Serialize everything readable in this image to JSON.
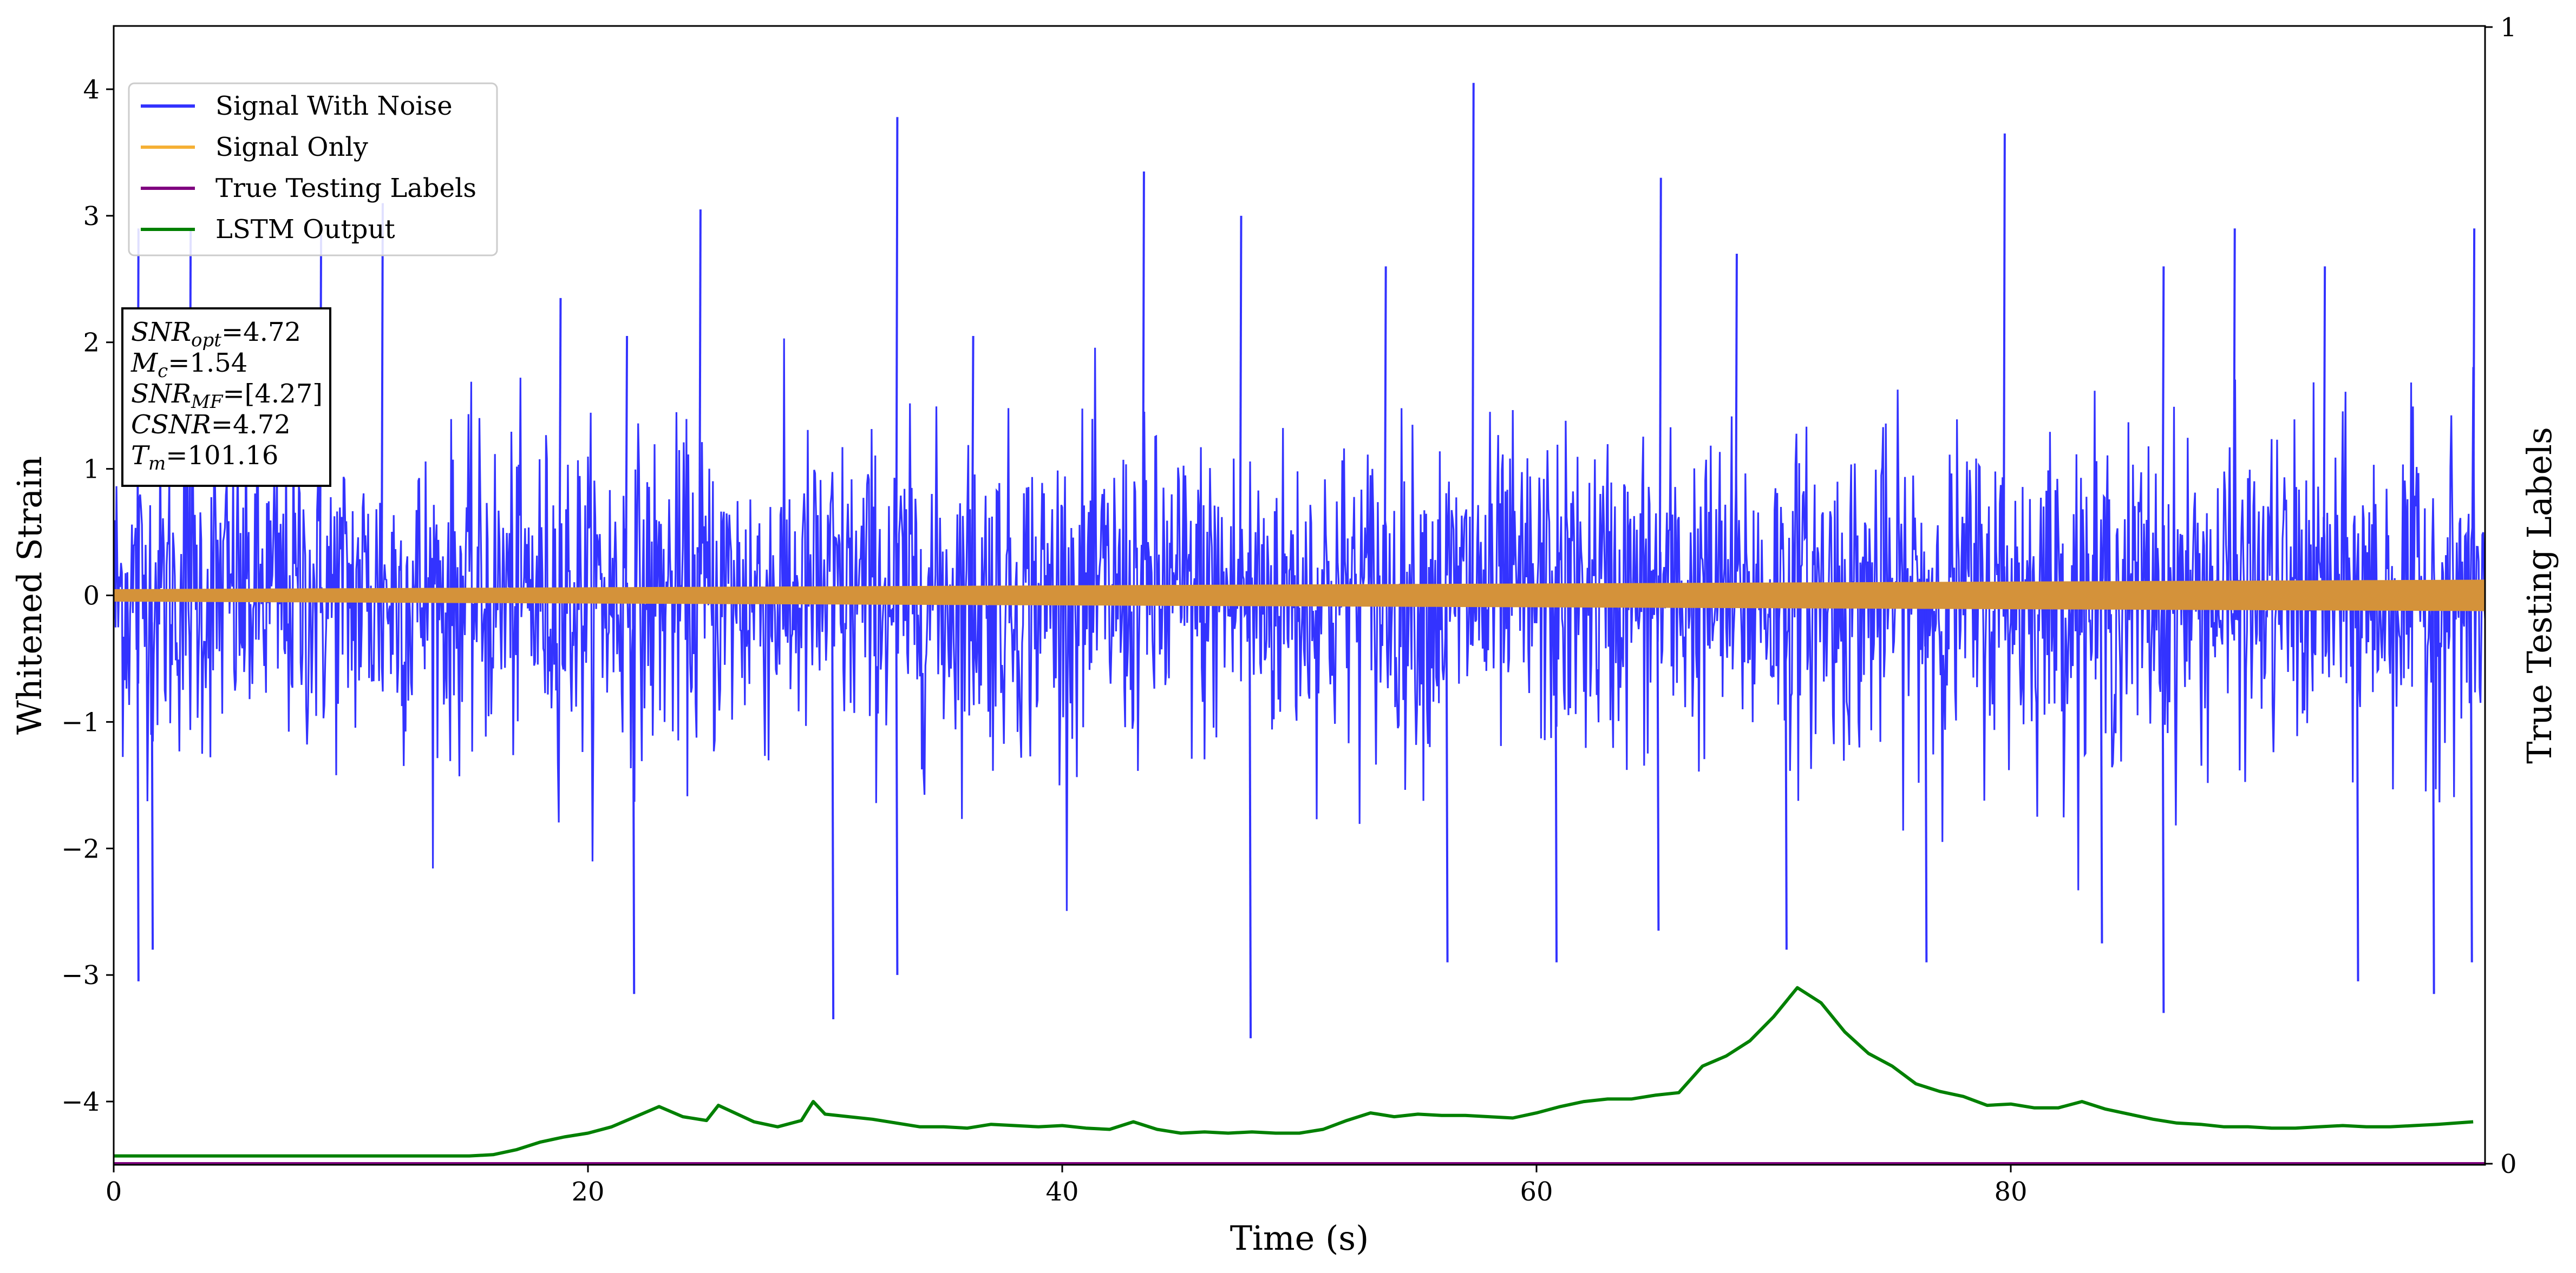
{
  "chart_data": {
    "type": "line",
    "xlabel": "Time (s)",
    "ylabel": "Whitened Strain",
    "y2label": "True Testing Labels",
    "xlim": [
      0,
      100
    ],
    "ylim": [
      -4.5,
      4.5
    ],
    "y2lim": [
      0,
      1
    ],
    "xticks": [
      0,
      20,
      40,
      60,
      80
    ],
    "yticks": [
      -4,
      -3,
      -2,
      -1,
      0,
      1,
      2,
      3,
      4
    ],
    "y2ticks": [
      0,
      1
    ],
    "legend_position": "top-left",
    "series": [
      {
        "name": "Signal With Noise",
        "axis": "left",
        "color": "#3333ff",
        "kind": "noise",
        "note_sigma": 0.62,
        "spikes": [
          [
            1.0,
            2.9
          ],
          [
            3.2,
            2.9
          ],
          [
            8.7,
            2.85
          ],
          [
            11.3,
            3.1
          ],
          [
            18.8,
            2.35
          ],
          [
            21.6,
            2.05
          ],
          [
            24.7,
            3.05
          ],
          [
            33.0,
            3.78
          ],
          [
            36.2,
            2.05
          ],
          [
            43.4,
            3.35
          ],
          [
            47.5,
            3.0
          ],
          [
            53.6,
            2.6
          ],
          [
            57.3,
            4.05
          ],
          [
            65.2,
            3.3
          ],
          [
            68.4,
            2.7
          ],
          [
            79.7,
            3.65
          ],
          [
            86.4,
            2.6
          ],
          [
            89.4,
            2.9
          ],
          [
            93.2,
            2.6
          ],
          [
            99.5,
            2.9
          ],
          [
            1.0,
            -3.05
          ],
          [
            1.6,
            -2.8
          ],
          [
            21.9,
            -3.15
          ],
          [
            30.3,
            -3.35
          ],
          [
            33.0,
            -3.0
          ],
          [
            47.9,
            -3.5
          ],
          [
            56.2,
            -2.9
          ],
          [
            60.8,
            -2.9
          ],
          [
            65.1,
            -2.65
          ],
          [
            70.5,
            -2.8
          ],
          [
            76.4,
            -2.9
          ],
          [
            83.8,
            -2.75
          ],
          [
            86.4,
            -3.3
          ],
          [
            94.6,
            -3.05
          ],
          [
            97.8,
            -3.15
          ],
          [
            99.4,
            -2.9
          ]
        ]
      },
      {
        "name": "Signal Only",
        "axis": "left",
        "color": "#daa03c",
        "kind": "band",
        "amplitude_start": 0.045,
        "amplitude_end": 0.12
      },
      {
        "name": "True Testing Labels",
        "axis": "right",
        "color": "#800080",
        "kind": "line",
        "x": [
          0,
          100
        ],
        "y": [
          0,
          0
        ]
      },
      {
        "name": "LSTM Output",
        "axis": "left",
        "color": "#008000",
        "kind": "line",
        "x": [
          0,
          15,
          16,
          17,
          18,
          19,
          20,
          21,
          22,
          23,
          24,
          25,
          25.5,
          27,
          28,
          29,
          29.5,
          30,
          31,
          32,
          33,
          34,
          35,
          36,
          37,
          38,
          39,
          40,
          41,
          42,
          43,
          44,
          45,
          46,
          47,
          48,
          49,
          50,
          51,
          52,
          53,
          54,
          55,
          56,
          57,
          58,
          59,
          60,
          61,
          62,
          63,
          64,
          65,
          66,
          67,
          68,
          69,
          70,
          71,
          72,
          73,
          74,
          75,
          76,
          77,
          78,
          79,
          80,
          81,
          82,
          83,
          84,
          85,
          86,
          87,
          88,
          89,
          90,
          91,
          92,
          93,
          94,
          95,
          96,
          97,
          98,
          99.5
        ],
        "y": [
          -4.43,
          -4.43,
          -4.42,
          -4.38,
          -4.32,
          -4.28,
          -4.25,
          -4.2,
          -4.12,
          -4.04,
          -4.12,
          -4.15,
          -4.03,
          -4.16,
          -4.2,
          -4.15,
          -4.0,
          -4.1,
          -4.12,
          -4.14,
          -4.17,
          -4.2,
          -4.2,
          -4.21,
          -4.18,
          -4.19,
          -4.2,
          -4.19,
          -4.21,
          -4.22,
          -4.16,
          -4.22,
          -4.25,
          -4.24,
          -4.25,
          -4.24,
          -4.25,
          -4.25,
          -4.22,
          -4.15,
          -4.09,
          -4.12,
          -4.1,
          -4.11,
          -4.11,
          -4.12,
          -4.13,
          -4.09,
          -4.04,
          -4.0,
          -3.98,
          -3.98,
          -3.95,
          -3.93,
          -3.72,
          -3.64,
          -3.52,
          -3.33,
          -3.1,
          -3.22,
          -3.45,
          -3.62,
          -3.72,
          -3.86,
          -3.92,
          -3.96,
          -4.03,
          -4.02,
          -4.05,
          -4.05,
          -4.0,
          -4.06,
          -4.1,
          -4.14,
          -4.17,
          -4.18,
          -4.2,
          -4.2,
          -4.21,
          -4.21,
          -4.2,
          -4.19,
          -4.2,
          -4.2,
          -4.19,
          -4.18,
          -4.16
        ]
      }
    ]
  },
  "annotation": {
    "snr_opt": {
      "base": "SNR",
      "sub": "opt",
      "value": "=4.72"
    },
    "mc": {
      "base": "M",
      "sub": "c",
      "value": "=1.54"
    },
    "snr_mf": {
      "base": "SNR",
      "sub": "MF",
      "value": "=[4.27]"
    },
    "csnr": {
      "base": "CSNR",
      "sub": "",
      "value": "=4.72"
    },
    "tm": {
      "base": "T",
      "sub": "m",
      "value": "=101.16"
    }
  }
}
